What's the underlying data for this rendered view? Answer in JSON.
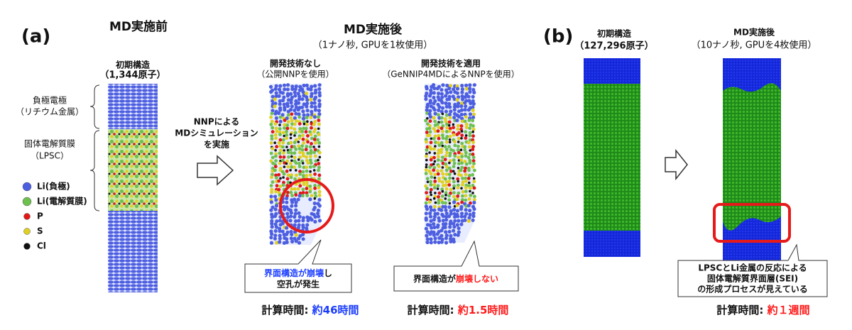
{
  "panel_a": {
    "label": "(a)",
    "before_title": "MD実施前",
    "after_title": "MD実施後",
    "after_subtitle": "（1ナノ秒, GPUを1枚使用）",
    "initial": {
      "title": "初期構造",
      "atoms": "（1,344原子）"
    },
    "anode": {
      "name": "負極電極",
      "detail": "（リチウム金属）"
    },
    "electrolyte": {
      "name": "固体電解質膜",
      "detail": "（LPSC）"
    },
    "legend": [
      "Li(負極)",
      "Li(電解質膜)",
      "P",
      "S",
      "Cl"
    ],
    "arrow_text": [
      "NNPによる",
      "MDシミュレーション",
      "を実施"
    ],
    "without": {
      "title": "開発技術なし",
      "detail": "（公開NNPを使用）",
      "callout": [
        [
          "界面構造が崩壊",
          "し"
        ],
        [
          "空孔が発生"
        ]
      ],
      "time_label": "計算時間: ",
      "time_value": "約46時間"
    },
    "with": {
      "title": "開発技術を適用",
      "detail": "（GeNNIP4MDによるNNPを使用）",
      "callout": [
        [
          "界面構造が",
          "崩壊しない"
        ]
      ],
      "time_label": "計算時間: ",
      "time_value": "約1.5時間"
    }
  },
  "panel_b": {
    "label": "(b)",
    "initial": {
      "title": "初期構造",
      "atoms": "（127,296原子）"
    },
    "after_title": "MD実施後",
    "after_subtitle": "（10ナノ秒, GPUを4枚使用）",
    "callout": [
      "LPSCとLi金属の反応による",
      "固体電解質界面層(SEI)",
      "の形成プロセスが見えている"
    ],
    "time_label": "計算時間: ",
    "time_value": "約１週間"
  }
}
